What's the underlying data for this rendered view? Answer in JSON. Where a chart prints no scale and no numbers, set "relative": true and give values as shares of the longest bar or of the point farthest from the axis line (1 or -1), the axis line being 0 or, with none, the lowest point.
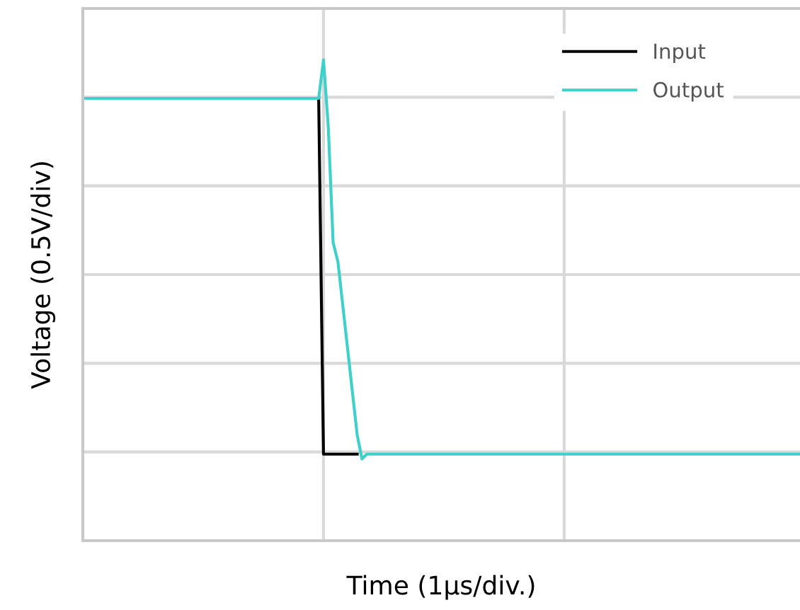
{
  "chart_data": {
    "type": "line",
    "xlabel": "Time (1µs/div.)",
    "ylabel": "Voltage (0.5V/div)",
    "relative": true,
    "categories": [
      null,
      null,
      null,
      null,
      null,
      null,
      null,
      null,
      null,
      null,
      null,
      null,
      null,
      null,
      null,
      null,
      null,
      null,
      null,
      null,
      null,
      null,
      null,
      null,
      null,
      null,
      null,
      null,
      null,
      null,
      null,
      null,
      null,
      null,
      null,
      null,
      null,
      null,
      null,
      null,
      null,
      null,
      null,
      null,
      null,
      null,
      null,
      null,
      null,
      null,
      null,
      null,
      null,
      null,
      null,
      null,
      null,
      null,
      null,
      null,
      null,
      null,
      null,
      null,
      null,
      null,
      null,
      null,
      null,
      null,
      null,
      null,
      null,
      null,
      null,
      null,
      null,
      null,
      null,
      null,
      null,
      null,
      null,
      null,
      null,
      null,
      null,
      null,
      null,
      null,
      null,
      null,
      null,
      null,
      null,
      null,
      null,
      null,
      null,
      null,
      null,
      null,
      null,
      null,
      null,
      null,
      null,
      null,
      null,
      null,
      null,
      null,
      null,
      null,
      null,
      null,
      null,
      null,
      null,
      null,
      null,
      null,
      null,
      null,
      null,
      null,
      null,
      null,
      null,
      null,
      null,
      null,
      null,
      null,
      null,
      null,
      null,
      null,
      null,
      null,
      null,
      null,
      null,
      null,
      null,
      null,
      null,
      null,
      null,
      null
    ],
    "grid": true,
    "legend": "top right",
    "tick_labels": false,
    "series": [
      {
        "name": "Input",
        "color": "#000000",
        "values": [
          null,
          null,
          null,
          null,
          null,
          null,
          null,
          null,
          null,
          null,
          null,
          null,
          null,
          null,
          null,
          null,
          null,
          null,
          null,
          null,
          null,
          null,
          null,
          null,
          null,
          null,
          null,
          null,
          null,
          null,
          null,
          null,
          null,
          null,
          null,
          null,
          null,
          null,
          null,
          null,
          null,
          null,
          null,
          null,
          null,
          null,
          null,
          null,
          null,
          0.92,
          0.18,
          0.18,
          0.18,
          0.18,
          0.18,
          0.18,
          0.18,
          0.18,
          null,
          null,
          null,
          null,
          null,
          null,
          null,
          null,
          null,
          null,
          null,
          null,
          null,
          null,
          null,
          null,
          null,
          null,
          null,
          null,
          null,
          null,
          null,
          null,
          null,
          null,
          null,
          null,
          null,
          null,
          null,
          null,
          null,
          null,
          null,
          null,
          null,
          null,
          null,
          null,
          null,
          null,
          null,
          null,
          null,
          null,
          null,
          null,
          null,
          null,
          null,
          null,
          null,
          null,
          null,
          null,
          null,
          null,
          null,
          null,
          null,
          null,
          null,
          null,
          null,
          null,
          null,
          null,
          null,
          null,
          null,
          null,
          null,
          null,
          null,
          null,
          null,
          null,
          null,
          null,
          null,
          null,
          null,
          null,
          null,
          null,
          null,
          null,
          null,
          null,
          null,
          null
        ]
      },
      {
        "name": "Output",
        "color": "#3fd0c9",
        "values": [
          0.92,
          0.92,
          0.92,
          0.92,
          0.92,
          0.92,
          0.92,
          0.92,
          0.92,
          0.92,
          0.92,
          0.92,
          0.92,
          0.92,
          0.92,
          0.92,
          0.92,
          0.92,
          0.92,
          0.92,
          0.92,
          0.92,
          0.92,
          0.92,
          0.92,
          0.92,
          0.92,
          0.92,
          0.92,
          0.92,
          0.92,
          0.92,
          0.92,
          0.92,
          0.92,
          0.92,
          0.92,
          0.92,
          0.92,
          0.92,
          0.92,
          0.92,
          0.92,
          0.92,
          0.92,
          0.92,
          0.92,
          0.92,
          0.92,
          0.92,
          1.0,
          0.86,
          0.62,
          0.58,
          0.49,
          0.4,
          0.31,
          0.22,
          0.17,
          0.18,
          0.18,
          0.18,
          0.18,
          0.18,
          0.18,
          0.18,
          0.18,
          0.18,
          0.18,
          0.18,
          0.18,
          0.18,
          0.18,
          0.18,
          0.18,
          0.18,
          0.18,
          0.18,
          0.18,
          0.18,
          0.18,
          0.18,
          0.18,
          0.18,
          0.18,
          0.18,
          0.18,
          0.18,
          0.18,
          0.18,
          0.18,
          0.18,
          0.18,
          0.18,
          0.18,
          0.18,
          0.18,
          0.18,
          0.18,
          0.18,
          0.18,
          0.18,
          0.18,
          0.18,
          0.18,
          0.18,
          0.18,
          0.18,
          0.18,
          0.18,
          0.18,
          0.18,
          0.18,
          0.18,
          0.18,
          0.18,
          0.18,
          0.18,
          0.18,
          0.18,
          0.18,
          0.18,
          0.18,
          0.18,
          0.18,
          0.18,
          0.18,
          0.18,
          0.18,
          0.18,
          0.18,
          0.18,
          0.18,
          0.18,
          0.18,
          0.18,
          0.18,
          0.18,
          0.18,
          0.18,
          0.18,
          0.18,
          0.18,
          0.18,
          0.18,
          0.18,
          0.18,
          0.18,
          0.18,
          0.18
        ]
      }
    ]
  }
}
